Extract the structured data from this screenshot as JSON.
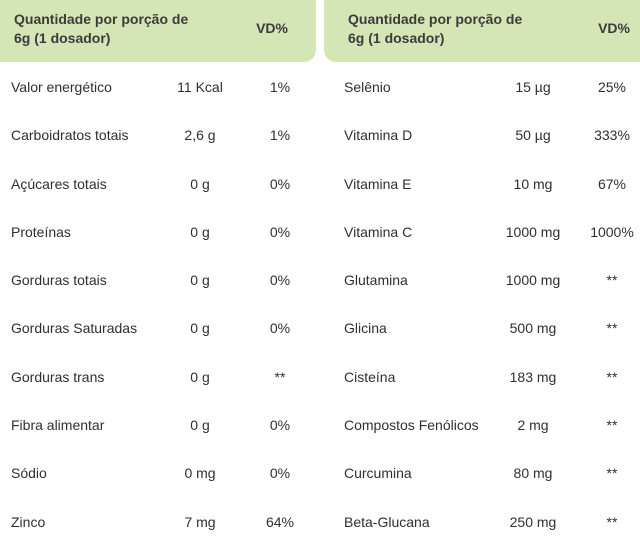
{
  "left": {
    "header": {
      "title": "Quantidade por porção de 6g (1 dosador)",
      "vd": "VD%"
    },
    "rows": [
      {
        "name": "Valor energético",
        "amount": "11 Kcal",
        "vd": "1%"
      },
      {
        "name": "Carboidratos totais",
        "amount": "2,6 g",
        "vd": "1%"
      },
      {
        "name": "Açúcares totais",
        "amount": "0 g",
        "vd": "0%"
      },
      {
        "name": "Proteínas",
        "amount": "0 g",
        "vd": "0%"
      },
      {
        "name": "Gorduras totais",
        "amount": "0 g",
        "vd": "0%"
      },
      {
        "name": "Gorduras Saturadas",
        "amount": "0 g",
        "vd": "0%"
      },
      {
        "name": "Gorduras trans",
        "amount": "0 g",
        "vd": "**"
      },
      {
        "name": "Fibra alimentar",
        "amount": "0 g",
        "vd": "0%"
      },
      {
        "name": "Sódio",
        "amount": "0 mg",
        "vd": "0%"
      },
      {
        "name": "Zinco",
        "amount": "7 mg",
        "vd": "64%"
      }
    ]
  },
  "right": {
    "header": {
      "title": "Quantidade por porção de 6g (1 dosador)",
      "vd": "VD%"
    },
    "rows": [
      {
        "name": "Selênio",
        "amount": "15 µg",
        "vd": "25%"
      },
      {
        "name": "Vitamina D",
        "amount": "50 µg",
        "vd": "333%"
      },
      {
        "name": "Vitamina E",
        "amount": "10 mg",
        "vd": "67%"
      },
      {
        "name": "Vitamina C",
        "amount": "1000 mg",
        "vd": "1000%"
      },
      {
        "name": "Glutamina",
        "amount": "1000 mg",
        "vd": "**"
      },
      {
        "name": "Glicina",
        "amount": "500 mg",
        "vd": "**"
      },
      {
        "name": "Cisteína",
        "amount": "183 mg",
        "vd": "**"
      },
      {
        "name": "Compostos Fenólicos",
        "amount": "2 mg",
        "vd": "**"
      },
      {
        "name": "Curcumina",
        "amount": "80 mg",
        "vd": "**"
      },
      {
        "name": "Beta-Glucana",
        "amount": "250 mg",
        "vd": "**"
      }
    ]
  },
  "colors": {
    "header_bg": "#d4e6b5",
    "text": "#2f2f2f"
  }
}
